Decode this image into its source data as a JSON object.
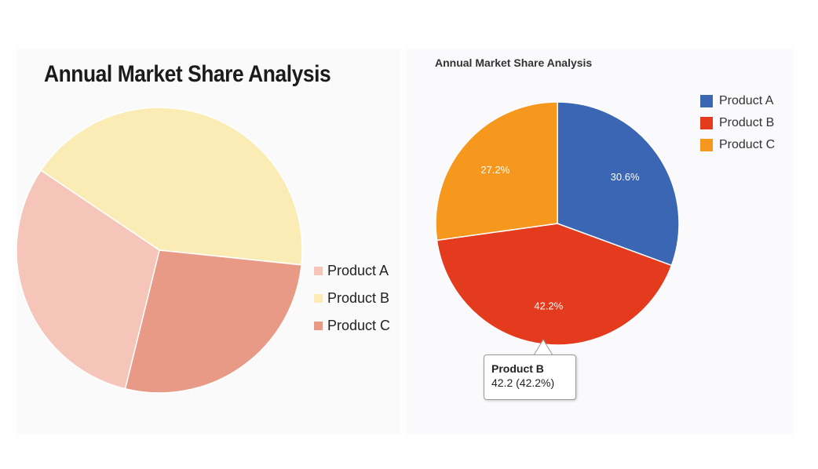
{
  "chart_data": [
    {
      "type": "pie",
      "title": "Annual Market Share Analysis",
      "categories": [
        "Product A",
        "Product B",
        "Product C"
      ],
      "values": [
        30.6,
        42.2,
        27.2
      ],
      "colors": [
        "#f4c5b8",
        "#faecb4",
        "#e99a86"
      ],
      "legend": "right"
    },
    {
      "type": "pie",
      "title": "Annual Market Share Analysis",
      "categories": [
        "Product A",
        "Product B",
        "Product C"
      ],
      "values": [
        30.6,
        42.2,
        27.2
      ],
      "data_labels": [
        "30.6%",
        "42.2%",
        "27.2%"
      ],
      "colors": [
        "#3a66b4",
        "#e43a1d",
        "#f7981e"
      ],
      "legend": "top-right",
      "tooltip": {
        "title": "Product B",
        "value": "42.2 (42.2%)"
      }
    }
  ]
}
